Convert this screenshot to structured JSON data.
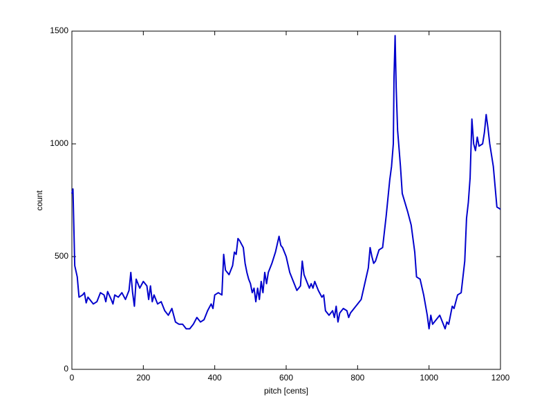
{
  "chart_data": {
    "type": "line",
    "xlabel": "pitch [cents]",
    "ylabel": "count",
    "color": "#0000cc",
    "xlim": [
      0,
      1200
    ],
    "xticks": [
      0,
      200,
      400,
      600,
      800,
      1000,
      1200
    ],
    "ylim": [
      0,
      1500
    ],
    "yticks": [
      0,
      500,
      1000,
      1500
    ],
    "x": [
      0,
      3,
      8,
      15,
      20,
      30,
      35,
      40,
      45,
      55,
      60,
      70,
      80,
      90,
      95,
      100,
      110,
      115,
      120,
      130,
      140,
      150,
      160,
      165,
      170,
      175,
      180,
      190,
      200,
      210,
      215,
      220,
      225,
      230,
      240,
      250,
      260,
      270,
      280,
      290,
      300,
      310,
      320,
      330,
      340,
      350,
      360,
      370,
      380,
      390,
      395,
      400,
      410,
      420,
      425,
      430,
      440,
      450,
      455,
      460,
      465,
      470,
      480,
      485,
      490,
      495,
      500,
      505,
      510,
      515,
      520,
      525,
      530,
      535,
      540,
      545,
      550,
      560,
      570,
      580,
      585,
      590,
      600,
      610,
      620,
      630,
      640,
      645,
      650,
      660,
      665,
      670,
      675,
      680,
      690,
      700,
      705,
      710,
      720,
      730,
      735,
      740,
      745,
      750,
      760,
      770,
      775,
      780,
      790,
      800,
      810,
      820,
      830,
      835,
      840,
      845,
      850,
      860,
      870,
      880,
      890,
      895,
      900,
      902,
      905,
      908,
      912,
      920,
      925,
      940,
      950,
      960,
      965,
      975,
      985,
      995,
      1000,
      1005,
      1010,
      1020,
      1030,
      1040,
      1045,
      1050,
      1055,
      1060,
      1065,
      1070,
      1080,
      1090,
      1100,
      1105,
      1110,
      1115,
      1120,
      1125,
      1130,
      1135,
      1140,
      1150,
      1155,
      1160,
      1165,
      1170,
      1180,
      1190,
      1200
    ],
    "values": [
      780,
      800,
      460,
      410,
      320,
      330,
      340,
      295,
      320,
      300,
      290,
      300,
      340,
      330,
      300,
      345,
      310,
      290,
      330,
      320,
      340,
      310,
      350,
      430,
      340,
      280,
      400,
      360,
      390,
      370,
      310,
      370,
      300,
      330,
      290,
      300,
      260,
      240,
      270,
      210,
      200,
      200,
      180,
      180,
      200,
      230,
      210,
      220,
      260,
      290,
      270,
      330,
      340,
      330,
      510,
      440,
      420,
      460,
      520,
      510,
      580,
      570,
      540,
      470,
      430,
      400,
      380,
      340,
      360,
      300,
      360,
      310,
      390,
      340,
      430,
      380,
      430,
      470,
      520,
      590,
      550,
      540,
      500,
      430,
      390,
      350,
      370,
      480,
      420,
      380,
      360,
      380,
      360,
      390,
      350,
      320,
      330,
      260,
      240,
      260,
      230,
      280,
      210,
      250,
      270,
      260,
      230,
      250,
      270,
      290,
      310,
      380,
      450,
      540,
      500,
      470,
      480,
      530,
      540,
      680,
      840,
      900,
      1000,
      1300,
      1480,
      1250,
      1060,
      900,
      780,
      700,
      640,
      520,
      410,
      400,
      330,
      240,
      180,
      240,
      200,
      220,
      240,
      200,
      180,
      210,
      200,
      240,
      280,
      270,
      330,
      340,
      480,
      670,
      740,
      850,
      1110,
      1000,
      970,
      1030,
      990,
      1000,
      1050,
      1130,
      1070,
      1000,
      900,
      720,
      710
    ]
  }
}
